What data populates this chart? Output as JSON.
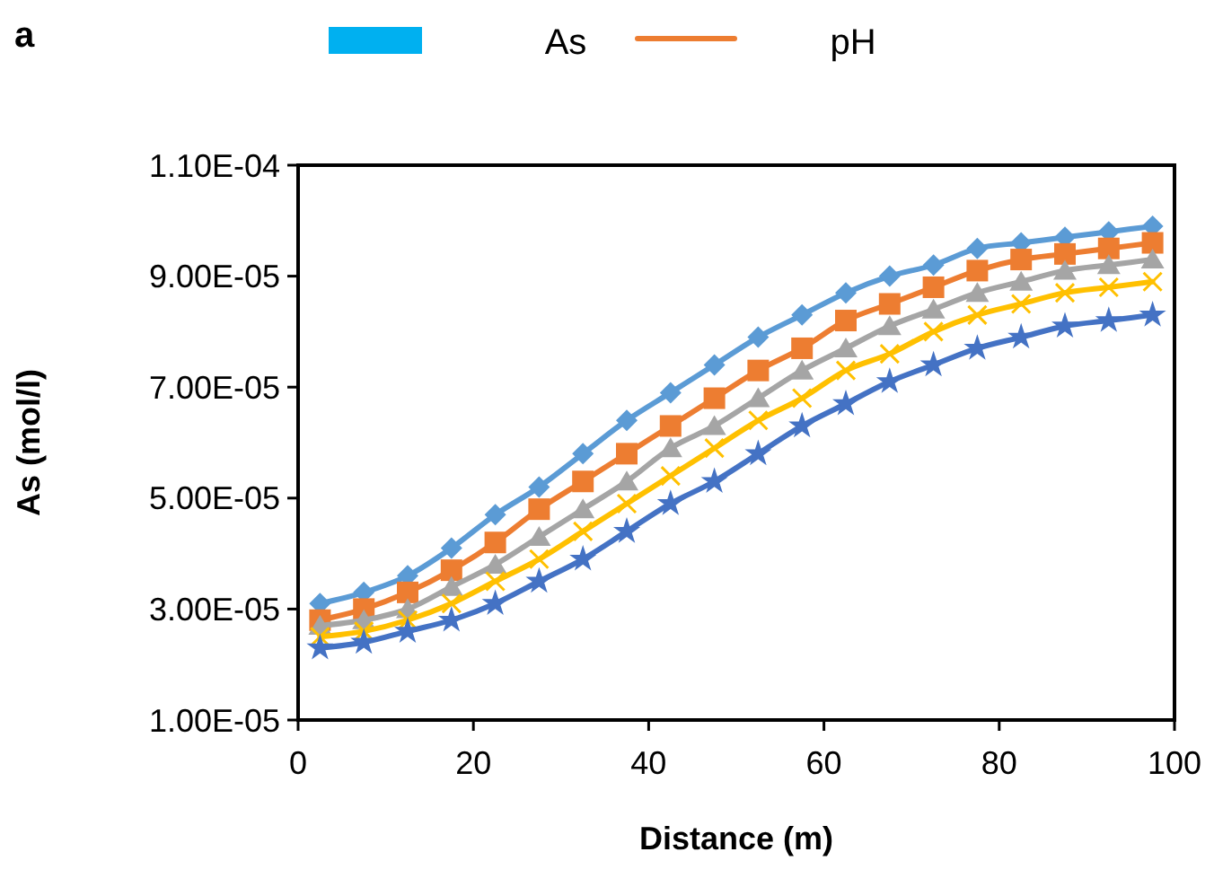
{
  "chart_data": {
    "type": "line",
    "title": "a",
    "xlabel": "Distance (m)",
    "ylabel": "As (mol/l)",
    "annotations": [
      "As",
      "pH"
    ],
    "x": [
      2.5,
      7.5,
      12.5,
      17.5,
      22.5,
      27.5,
      32.5,
      37.5,
      42.5,
      47.5,
      52.5,
      57.5,
      62.5,
      67.5,
      72.5,
      77.5,
      82.5,
      87.5,
      92.5,
      97.5
    ],
    "series": [
      {
        "color": "#5b9bd5",
        "marker": "diamond",
        "values": [
          3.1e-05,
          3.3e-05,
          3.6e-05,
          4.1e-05,
          4.7e-05,
          5.2e-05,
          5.8e-05,
          6.4e-05,
          6.9e-05,
          7.4e-05,
          7.9e-05,
          8.3e-05,
          8.7e-05,
          9e-05,
          9.2e-05,
          9.5e-05,
          9.6e-05,
          9.7e-05,
          9.8e-05,
          9.9e-05
        ]
      },
      {
        "color": "#ed7d31",
        "marker": "square",
        "values": [
          2.8e-05,
          3e-05,
          3.3e-05,
          3.7e-05,
          4.2e-05,
          4.8e-05,
          5.3e-05,
          5.8e-05,
          6.3e-05,
          6.8e-05,
          7.3e-05,
          7.7e-05,
          8.2e-05,
          8.5e-05,
          8.8e-05,
          9.1e-05,
          9.3e-05,
          9.4e-05,
          9.5e-05,
          9.6e-05
        ]
      },
      {
        "color": "#a5a5a5",
        "marker": "triangle",
        "values": [
          2.7e-05,
          2.8e-05,
          3e-05,
          3.4e-05,
          3.8e-05,
          4.3e-05,
          4.8e-05,
          5.3e-05,
          5.9e-05,
          6.3e-05,
          6.8e-05,
          7.3e-05,
          7.7e-05,
          8.1e-05,
          8.4e-05,
          8.7e-05,
          8.9e-05,
          9.1e-05,
          9.2e-05,
          9.3e-05
        ]
      },
      {
        "color": "#ffc000",
        "marker": "cross",
        "values": [
          2.5e-05,
          2.6e-05,
          2.8e-05,
          3.1e-05,
          3.5e-05,
          3.9e-05,
          4.4e-05,
          4.9e-05,
          5.4e-05,
          5.9e-05,
          6.4e-05,
          6.8e-05,
          7.3e-05,
          7.6e-05,
          8e-05,
          8.3e-05,
          8.5e-05,
          8.7e-05,
          8.8e-05,
          8.9e-05
        ]
      },
      {
        "color": "#4472c4",
        "marker": "star",
        "values": [
          2.3e-05,
          2.4e-05,
          2.6e-05,
          2.8e-05,
          3.1e-05,
          3.5e-05,
          3.9e-05,
          4.4e-05,
          4.9e-05,
          5.3e-05,
          5.8e-05,
          6.3e-05,
          6.7e-05,
          7.1e-05,
          7.4e-05,
          7.7e-05,
          7.9e-05,
          8.1e-05,
          8.2e-05,
          8.3e-05
        ]
      }
    ],
    "xlim": [
      0,
      100
    ],
    "xticks": [
      0,
      20,
      40,
      60,
      80,
      100
    ],
    "ylim": [
      1e-05,
      0.00011
    ],
    "yticks": [
      {
        "value": 1e-05,
        "label": "1.00E-05"
      },
      {
        "value": 3e-05,
        "label": "3.00E-05"
      },
      {
        "value": 5e-05,
        "label": "5.00E-05"
      },
      {
        "value": 7e-05,
        "label": "7.00E-05"
      },
      {
        "value": 9e-05,
        "label": "9.00E-05"
      },
      {
        "value": 0.00011,
        "label": "1.10E-04"
      }
    ],
    "grid": false,
    "line_style": "solid"
  }
}
